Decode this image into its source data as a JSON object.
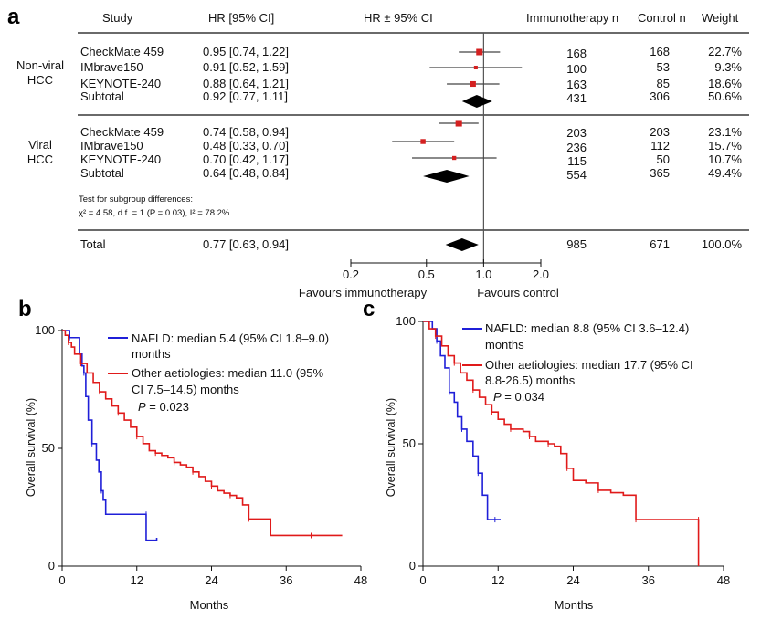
{
  "forest": {
    "panel_label": "a",
    "headers": {
      "study": "Study",
      "hr_ci": "HR [95% CI]",
      "hr_plot": "HR ± 95% CI",
      "immuno_n": "Immunotherapy n",
      "control_n": "Control n",
      "weight": "Weight"
    },
    "groups": [
      {
        "label_line1": "Non-viral",
        "label_line2": "HCC",
        "rows": [
          {
            "study": "CheckMate 459",
            "hr_text": "0.95 [0.74, 1.22]",
            "hr": 0.95,
            "lo": 0.74,
            "hi": 1.22,
            "immuno_n": "168",
            "control_n": "168",
            "weight": "22.7%",
            "kind": "study"
          },
          {
            "study": "IMbrave150",
            "hr_text": "0.91 [0.52, 1.59]",
            "hr": 0.91,
            "lo": 0.52,
            "hi": 1.59,
            "immuno_n": "100",
            "control_n": "53",
            "weight": "9.3%",
            "kind": "study"
          },
          {
            "study": "KEYNOTE-240",
            "hr_text": "0.88 [0.64, 1.21]",
            "hr": 0.88,
            "lo": 0.64,
            "hi": 1.21,
            "immuno_n": "163",
            "control_n": "85",
            "weight": "18.6%",
            "kind": "study"
          },
          {
            "study": "Subtotal",
            "hr_text": "0.92 [0.77, 1.11]",
            "hr": 0.92,
            "lo": 0.77,
            "hi": 1.11,
            "immuno_n": "431",
            "control_n": "306",
            "weight": "50.6%",
            "kind": "subtotal"
          }
        ]
      },
      {
        "label_line1": "Viral",
        "label_line2": "HCC",
        "rows": [
          {
            "study": "CheckMate 459",
            "hr_text": "0.74 [0.58, 0.94]",
            "hr": 0.74,
            "lo": 0.58,
            "hi": 0.94,
            "immuno_n": "203",
            "control_n": "203",
            "weight": "23.1%",
            "kind": "study"
          },
          {
            "study": "IMbrave150",
            "hr_text": "0.48 [0.33, 0.70]",
            "hr": 0.48,
            "lo": 0.33,
            "hi": 0.7,
            "immuno_n": "236",
            "control_n": "112",
            "weight": "15.7%",
            "kind": "study"
          },
          {
            "study": "KEYNOTE-240",
            "hr_text": "0.70 [0.42, 1.17]",
            "hr": 0.7,
            "lo": 0.42,
            "hi": 1.17,
            "immuno_n": "115",
            "control_n": "50",
            "weight": "10.7%",
            "kind": "study"
          },
          {
            "study": "Subtotal",
            "hr_text": "0.64 [0.48, 0.84]",
            "hr": 0.64,
            "lo": 0.48,
            "hi": 0.84,
            "immuno_n": "554",
            "control_n": "365",
            "weight": "49.4%",
            "kind": "subtotal"
          }
        ]
      }
    ],
    "subgroup_test_line1": "Test for subgroup differences:",
    "subgroup_test_line2": "χ² = 4.58, d.f. = 1 (P = 0.03), I² = 78.2%",
    "total": {
      "study": "Total",
      "hr_text": "0.77 [0.63, 0.94]",
      "hr": 0.77,
      "lo": 0.63,
      "hi": 0.94,
      "immuno_n": "985",
      "control_n": "671",
      "weight": "100.0%"
    },
    "axis_ticks": [
      "0.2",
      "0.5",
      "1.0",
      "2.0"
    ],
    "axis_tick_values": [
      0.2,
      0.5,
      1.0,
      2.0
    ],
    "favours_left": "Favours immunotherapy",
    "favours_right": "Favours control",
    "scale": "log"
  },
  "chart_data": [
    {
      "type": "line",
      "step": true,
      "panel_label": "b",
      "xlabel": "Months",
      "ylabel": "Overall survival (%)",
      "xlim": [
        0,
        48
      ],
      "ylim": [
        0,
        100
      ],
      "x_ticks": [
        "0",
        "12",
        "24",
        "36",
        "48"
      ],
      "y_ticks": [
        "0",
        "50",
        "100"
      ],
      "legend": {
        "blue_line1": "NAFLD: median 5.4 (95% CI 1.8–9.0)",
        "blue_line2": "months",
        "red_line1": "Other aetiologies: median 11.0 (95%",
        "red_line2": "CI 7.5–14.5) months",
        "p_prefix": "P",
        "p_value": " = 0.023"
      },
      "series": [
        {
          "color": "#1f1fd8",
          "x": [
            0,
            1.2,
            1.2,
            2.8,
            3.2,
            3.5,
            3.8,
            4.2,
            4.8,
            5.5,
            5.9,
            6.3,
            6.6,
            7.0,
            13.5,
            13.5,
            15.2
          ],
          "y": [
            100,
            100,
            97,
            90,
            85,
            82,
            72,
            62,
            52,
            45,
            40,
            32,
            28,
            22,
            22,
            11,
            12
          ]
        },
        {
          "color": "#e01a1a",
          "x": [
            0,
            0.5,
            1,
            1.5,
            2,
            3,
            4,
            5,
            6,
            7,
            8,
            9,
            10,
            11,
            12,
            13,
            14,
            15,
            16,
            17,
            18,
            19,
            20,
            21,
            22,
            23,
            24,
            25,
            26,
            27,
            28,
            29,
            30,
            33.5,
            35,
            40,
            44,
            45
          ],
          "y": [
            100,
            98,
            95,
            93,
            90,
            86,
            82,
            78,
            74,
            71,
            68,
            65,
            62,
            59,
            55,
            52,
            49,
            48,
            47,
            46,
            44,
            43,
            42,
            40,
            38,
            36,
            34,
            32,
            31,
            30,
            29,
            26,
            20,
            13,
            13,
            13,
            13,
            13
          ]
        }
      ]
    },
    {
      "type": "line",
      "step": true,
      "panel_label": "c",
      "xlabel": "Months",
      "ylabel": "Overall survival (%)",
      "xlim": [
        0,
        48
      ],
      "ylim": [
        0,
        100
      ],
      "x_ticks": [
        "0",
        "12",
        "24",
        "36",
        "48"
      ],
      "y_ticks": [
        "0",
        "50",
        "100"
      ],
      "legend": {
        "blue_line1": "NAFLD: median 8.8 (95% CI 3.6–12.4)",
        "blue_line2": "months",
        "red_line1": "Other aetiologies: median 17.7 (95% CI",
        "red_line2": "8.8-26.5) months",
        "p_prefix": "P",
        "p_value": " = 0.034"
      },
      "series": [
        {
          "color": "#1f1fd8",
          "x": [
            0,
            1.5,
            2.2,
            2.8,
            3.5,
            4.2,
            5.0,
            5.5,
            6.2,
            7.0,
            8.0,
            8.8,
            9.5,
            10.3,
            11.5,
            12.4
          ],
          "y": [
            100,
            97,
            92,
            86,
            81,
            71,
            67,
            61,
            56,
            51,
            45,
            38,
            29,
            19,
            19,
            19
          ]
        },
        {
          "color": "#e01a1a",
          "x": [
            0,
            1,
            2,
            3,
            4,
            5,
            6,
            7,
            8,
            9,
            10,
            11,
            12,
            13,
            14,
            15,
            16,
            17,
            18,
            19,
            20,
            21,
            22,
            23,
            24,
            26,
            28,
            30,
            32,
            34,
            36,
            40,
            44,
            44
          ],
          "y": [
            100,
            97,
            94,
            90,
            86,
            83,
            79,
            76,
            72,
            69,
            66,
            63,
            60,
            58,
            56,
            56,
            55,
            53,
            51,
            51,
            50,
            49,
            46,
            40,
            35,
            34,
            31,
            30,
            29,
            19,
            19,
            19,
            19,
            0
          ]
        }
      ]
    }
  ]
}
